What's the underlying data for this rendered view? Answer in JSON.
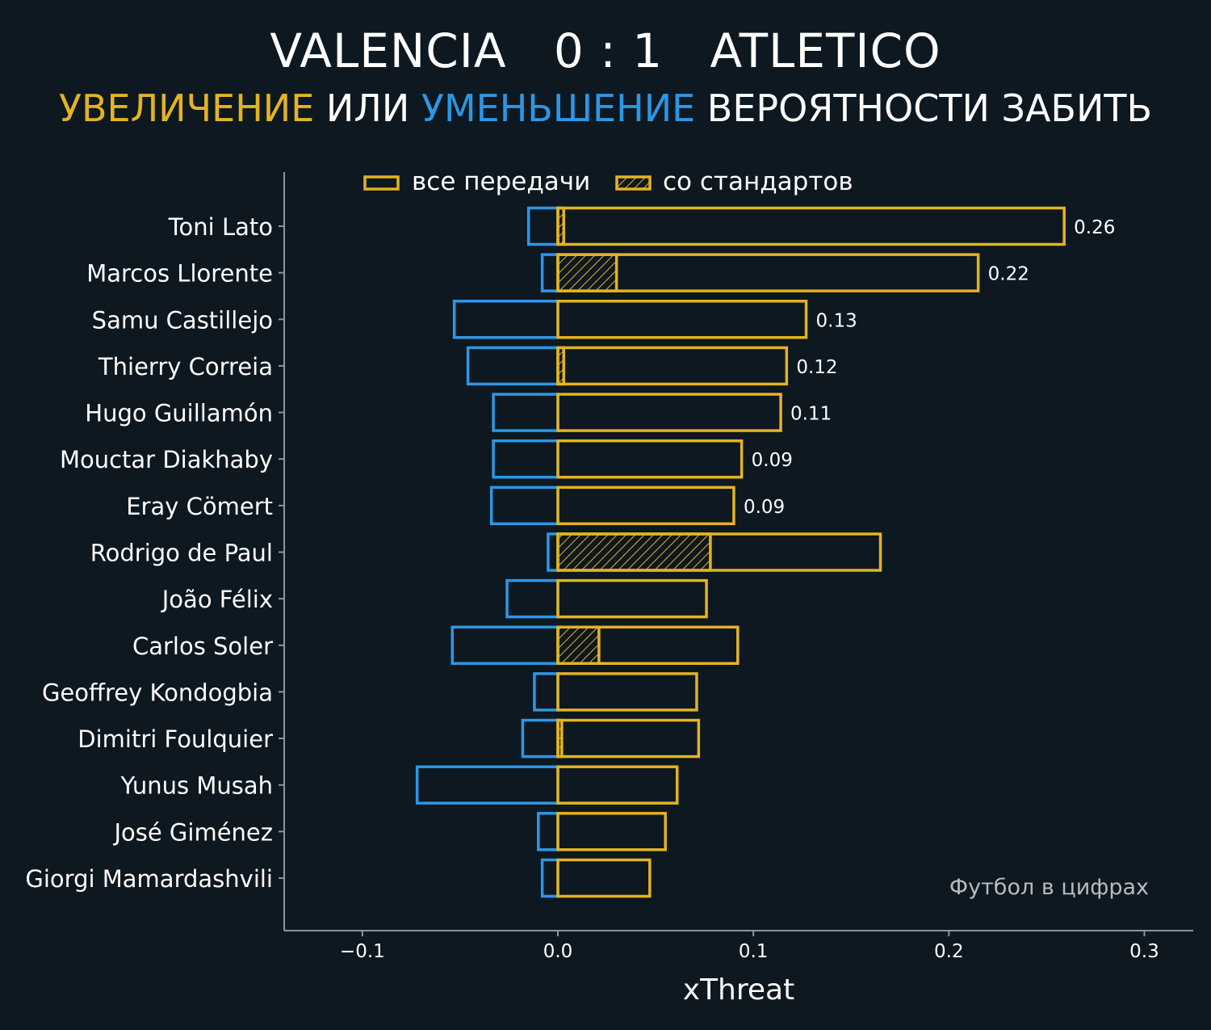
{
  "header": {
    "home": "VALENCIA",
    "score": "0 : 1",
    "away": "ATLETICO",
    "subtitle_parts": [
      {
        "text": "УВЕЛИЧЕНИЕ",
        "color": "#e3b321"
      },
      {
        "text": " ИЛИ ",
        "color": "#ffffff"
      },
      {
        "text": "УМЕНЬШЕНИЕ",
        "color": "#2b97e6"
      },
      {
        "text": " ВЕРОЯТНОСТИ ЗАБИТЬ",
        "color": "#ffffff"
      }
    ]
  },
  "watermark": "Футбол в цифрах",
  "colors": {
    "background": "#0e1820",
    "increase": "#e3b321",
    "decrease": "#2b97e6",
    "axis": "#8c959c",
    "text": "#ffffff"
  },
  "chart_data": {
    "type": "bar",
    "orientation": "horizontal",
    "xlabel": "xThreat",
    "ylabel": "",
    "xlim": [
      -0.14,
      0.325
    ],
    "xticks": [
      -0.1,
      0.0,
      0.1,
      0.2,
      0.3
    ],
    "xtick_labels": [
      "−0.1",
      "0.0",
      "0.1",
      "0.2",
      "0.3"
    ],
    "legend": {
      "position": "top",
      "entries": [
        {
          "label": "все передачи",
          "style": "outline"
        },
        {
          "label": "со стандартов",
          "style": "hatched"
        }
      ]
    },
    "categories": [
      "Toni Lato",
      "Marcos Llorente",
      "Samu Castillejo",
      "Thierry Correia",
      "Hugo Guillamón",
      "Mouctar Diakhaby",
      "Eray Cömert",
      "Rodrigo de Paul",
      "João Félix",
      "Carlos Soler",
      "Geoffrey Kondogbia",
      "Dimitri Foulquier",
      "Yunus Musah",
      "José Giménez",
      "Giorgi Mamardashvili"
    ],
    "series": [
      {
        "name": "все передачи",
        "values": [
          0.259,
          0.215,
          0.127,
          0.117,
          0.114,
          0.094,
          0.09,
          0.165,
          0.076,
          0.092,
          0.071,
          0.072,
          0.061,
          0.055,
          0.047
        ]
      },
      {
        "name": "",
        "values": [
          -0.015,
          -0.008,
          -0.053,
          -0.046,
          -0.033,
          -0.033,
          -0.034,
          -0.005,
          -0.026,
          -0.054,
          -0.012,
          -0.018,
          -0.072,
          -0.01,
          -0.008
        ]
      },
      {
        "name": "со стандартов",
        "values": [
          0.003,
          0.03,
          0,
          0.003,
          0,
          0,
          0,
          0.078,
          0,
          0.021,
          0,
          0.002,
          0,
          0,
          0
        ]
      }
    ],
    "data_labels": [
      "0.26",
      "0.22",
      "0.13",
      "0.12",
      "0.11",
      "0.09",
      "0.09",
      "",
      "",
      "",
      "",
      "",
      "",
      "",
      ""
    ]
  }
}
